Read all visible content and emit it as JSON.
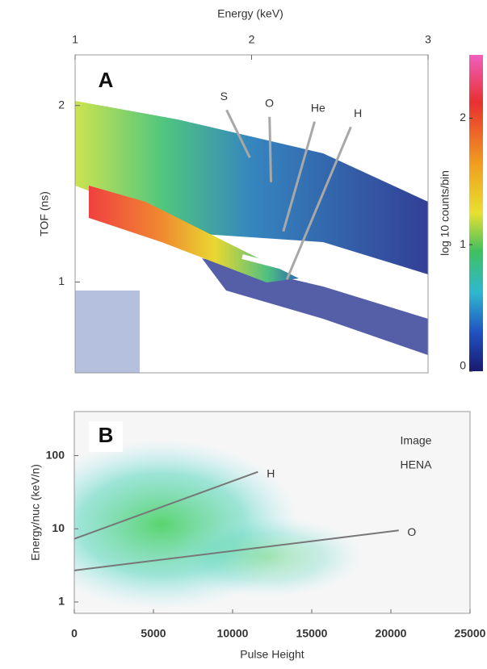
{
  "chart_data": [
    {
      "type": "heatmap",
      "panel_label": "A",
      "x_label": "Energy (keV)",
      "y_label": "TOF (ns)",
      "xlim": [
        1,
        3
      ],
      "xticks": [
        1,
        2,
        3
      ],
      "ylim": [
        0.7,
        2.44
      ],
      "yticks": [
        1,
        2
      ],
      "y_scale": "log",
      "colorbar": {
        "label": "log 10 counts/bin",
        "lim": [
          0,
          2.5
        ],
        "ticks": [
          0,
          1,
          2
        ]
      },
      "annotations": [
        {
          "text": "S",
          "x": 1.99,
          "y": 1.63
        },
        {
          "text": "O",
          "x": 2.11,
          "y": 1.48
        },
        {
          "text": "He",
          "x": 2.18,
          "y": 1.22
        },
        {
          "text": "H",
          "x": 2.2,
          "y": 1.01
        }
      ]
    },
    {
      "type": "scatter",
      "panel_label": "B",
      "x_label": "Pulse Height",
      "y_label": "Energy/nuc (keV/n)",
      "xlim": [
        0,
        25000
      ],
      "xticks": [
        0,
        5000,
        10000,
        15000,
        20000,
        25000
      ],
      "ylim": [
        0.7,
        400
      ],
      "yticks": [
        1,
        10,
        100
      ],
      "y_scale": "log",
      "text_lines": [
        "Image",
        "HENA"
      ],
      "fit_lines": [
        {
          "name": "H",
          "x": [
            0,
            11600
          ],
          "y": [
            7.3,
            60
          ]
        },
        {
          "name": "O",
          "x": [
            0,
            20500
          ],
          "y": [
            2.7,
            9.5
          ]
        }
      ]
    }
  ]
}
